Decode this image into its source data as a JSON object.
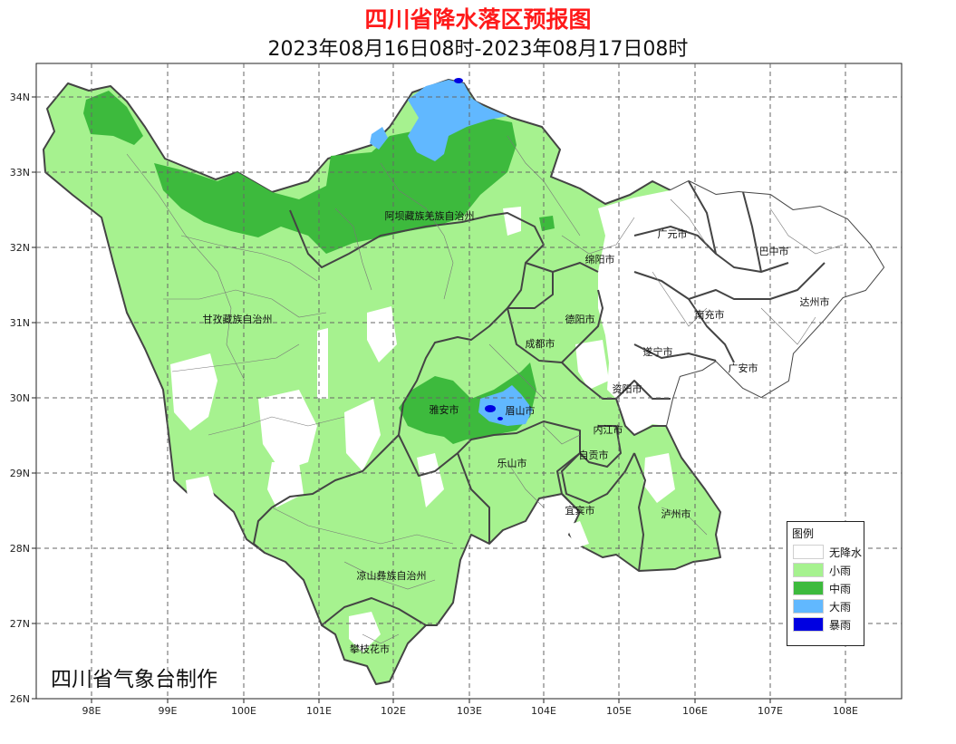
{
  "title": "四川省降水落区预报图",
  "subtitle": "2023年08月16日08时-2023年08月17日08时",
  "credit": "四川省气象台制作",
  "axes": {
    "lon_labels": [
      "98E",
      "99E",
      "100E",
      "101E",
      "102E",
      "103E",
      "104E",
      "105E",
      "106E",
      "107E",
      "108E"
    ],
    "lat_labels": [
      "34N",
      "33N",
      "32N",
      "31N",
      "30N",
      "29N",
      "28N",
      "27N",
      "26N"
    ]
  },
  "regions": [
    {
      "name": "阿坝藏族羌族自治州"
    },
    {
      "name": "甘孜藏族自治州"
    },
    {
      "name": "凉山彝族自治州"
    },
    {
      "name": "攀枝花市"
    },
    {
      "name": "广元市"
    },
    {
      "name": "巴中市"
    },
    {
      "name": "绵阳市"
    },
    {
      "name": "达州市"
    },
    {
      "name": "德阳市"
    },
    {
      "name": "南充市"
    },
    {
      "name": "成都市"
    },
    {
      "name": "遂宁市"
    },
    {
      "name": "广安市"
    },
    {
      "name": "资阳市"
    },
    {
      "name": "雅安市"
    },
    {
      "name": "眉山市"
    },
    {
      "name": "内江市"
    },
    {
      "name": "自贡市"
    },
    {
      "name": "乐山市"
    },
    {
      "name": "宜宾市"
    },
    {
      "name": "泸州市"
    }
  ],
  "legend": {
    "title": "图例",
    "items": [
      {
        "label": "无降水",
        "color": "#ffffff"
      },
      {
        "label": "小雨",
        "color": "#a6f28f"
      },
      {
        "label": "中雨",
        "color": "#3dba3d"
      },
      {
        "label": "大雨",
        "color": "#61b8ff"
      },
      {
        "label": "暴雨",
        "color": "#0000e1"
      }
    ]
  }
}
